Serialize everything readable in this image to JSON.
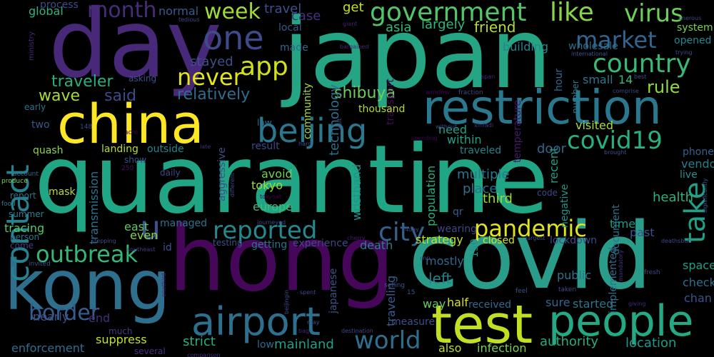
{
  "palette": {
    "yellow": "#fde725",
    "yellow_green": "#c8e020",
    "light_green": "#90d743",
    "green": "#5ec962",
    "teal_green": "#35b779",
    "teal": "#21918c",
    "blue_teal": "#2c728e",
    "blue": "#3b528b",
    "indigo": "#472d7b",
    "purple": "#440154"
  },
  "words": [
    {
      "text": "quarantine",
      "color": "#21a685"
    },
    {
      "text": "japan",
      "color": "#25a584"
    },
    {
      "text": "covid",
      "color": "#2a9d8a"
    },
    {
      "text": "hong",
      "color": "#46075a"
    },
    {
      "text": "day",
      "color": "#482878"
    },
    {
      "text": "kong",
      "color": "#2e6f8e"
    },
    {
      "text": "china",
      "color": "#fde725"
    },
    {
      "text": "restriction",
      "color": "#2a788e"
    },
    {
      "text": "test",
      "color": "#c2df23"
    },
    {
      "text": "people",
      "color": "#23a983"
    },
    {
      "text": "airport",
      "color": "#2d708e"
    },
    {
      "text": "government",
      "color": "#52c569"
    },
    {
      "text": "like",
      "color": "#86d549"
    },
    {
      "text": "virus",
      "color": "#6ece58"
    },
    {
      "text": "contact",
      "color": "#26828e"
    },
    {
      "text": "beijing",
      "color": "#2a778e"
    },
    {
      "text": "one",
      "color": "#3e4a89"
    },
    {
      "text": "week",
      "color": "#a0da39"
    },
    {
      "text": "month",
      "color": "#472c7a"
    },
    {
      "text": "market",
      "color": "#32658e"
    },
    {
      "text": "country",
      "color": "#38b977"
    },
    {
      "text": "app",
      "color": "#d0e11c"
    },
    {
      "text": "never",
      "color": "#e5e419"
    },
    {
      "text": "covid19",
      "color": "#2ab07f"
    },
    {
      "text": "take",
      "color": "#1fa088"
    },
    {
      "text": "reported",
      "color": "#23898e"
    },
    {
      "text": "outbreak",
      "color": "#35b779"
    },
    {
      "text": "pandemic",
      "color": "#e2e418"
    },
    {
      "text": "city",
      "color": "#33628d"
    },
    {
      "text": "border",
      "color": "#365d8d"
    },
    {
      "text": "world",
      "color": "#2d708e"
    },
    {
      "text": "u",
      "color": "#3b528b"
    },
    {
      "text": "traveler",
      "color": "#29af7f"
    },
    {
      "text": "relatively",
      "color": "#2f6c8e"
    },
    {
      "text": "shibuya",
      "color": "#6ccd5a"
    },
    {
      "text": "rule",
      "color": "#93d741"
    },
    {
      "text": "said",
      "color": "#3e4a89"
    },
    {
      "text": "wave",
      "color": "#a8db34"
    },
    {
      "text": "friend",
      "color": "#b5de2b"
    },
    {
      "text": "largely",
      "color": "#32b67a"
    },
    {
      "text": "get",
      "color": "#c5e021"
    },
    {
      "text": "asia",
      "color": "#35b779"
    },
    {
      "text": "case",
      "color": "#46307e"
    },
    {
      "text": "travel",
      "color": "#3b518b"
    },
    {
      "text": "normal",
      "color": "#375b8d"
    },
    {
      "text": "global",
      "color": "#2db27d"
    },
    {
      "text": "process",
      "color": "#3e4c8a"
    },
    {
      "text": "local",
      "color": "#39568c"
    },
    {
      "text": "made",
      "color": "#31668e"
    },
    {
      "text": "stayed",
      "color": "#3d4e8a"
    },
    {
      "text": "technology",
      "color": "#2d708e"
    },
    {
      "text": "community",
      "color": "#a5db36"
    },
    {
      "text": "transport",
      "color": "#46085c"
    },
    {
      "text": "building",
      "color": "#24868e"
    },
    {
      "text": "wholesale",
      "color": "#2e6e8e"
    },
    {
      "text": "system",
      "color": "#7ad151"
    },
    {
      "text": "opened",
      "color": "#23898e"
    },
    {
      "text": "small",
      "color": "#2a778e"
    },
    {
      "text": "14",
      "color": "#3aba76"
    },
    {
      "text": "hour",
      "color": "#31688e"
    },
    {
      "text": "temperature",
      "color": "#48186a"
    },
    {
      "text": "number",
      "color": "#277f8e"
    },
    {
      "text": "thousand",
      "color": "#b2dd2d"
    },
    {
      "text": "within",
      "color": "#1fa188"
    },
    {
      "text": "need",
      "color": "#1fa287"
    },
    {
      "text": "door",
      "color": "#32658e"
    },
    {
      "text": "visited",
      "color": "#a5db36"
    },
    {
      "text": "phone",
      "color": "#34618d"
    },
    {
      "text": "vendor",
      "color": "#287d8e"
    },
    {
      "text": "live",
      "color": "#21918c"
    },
    {
      "text": "health",
      "color": "#2db27d"
    },
    {
      "text": "recent",
      "color": "#1f9e89"
    },
    {
      "text": "multiple",
      "color": "#2a778e"
    },
    {
      "text": "place",
      "color": "#2d708e"
    },
    {
      "text": "third",
      "color": "#9bd93c"
    },
    {
      "text": "avoid",
      "color": "#74d055"
    },
    {
      "text": "tokyo",
      "color": "#a2da37"
    },
    {
      "text": "europe",
      "color": "#46b87a"
    },
    {
      "text": "result",
      "color": "#3f4889"
    },
    {
      "text": "outside",
      "color": "#24878e"
    },
    {
      "text": "traveled",
      "color": "#25848e"
    },
    {
      "text": "landing",
      "color": "#b5de2b"
    },
    {
      "text": "quash",
      "color": "#8bd646"
    },
    {
      "text": "two",
      "color": "#39568c"
    },
    {
      "text": "early",
      "color": "#2c738e"
    },
    {
      "text": "transmission",
      "color": "#2c738e"
    },
    {
      "text": "aggressive",
      "color": "#3c4f8a"
    },
    {
      "text": "wristband",
      "color": "#20928c"
    },
    {
      "text": "population",
      "color": "#2ab07f"
    },
    {
      "text": "east",
      "color": "#5cc863"
    },
    {
      "text": "even",
      "color": "#84d44b"
    },
    {
      "text": "managed",
      "color": "#2c728e"
    },
    {
      "text": "tracing",
      "color": "#54c568"
    },
    {
      "text": "mask",
      "color": "#bade28"
    },
    {
      "text": "report",
      "color": "#2c738e"
    },
    {
      "text": "summer",
      "color": "#27808e"
    },
    {
      "text": "person",
      "color": "#2c738e"
    },
    {
      "text": "come",
      "color": "#424086"
    },
    {
      "text": "wearing",
      "color": "#404688"
    },
    {
      "text": "qr",
      "color": "#365c8d"
    },
    {
      "text": "strategy",
      "color": "#c0df25"
    },
    {
      "text": "closed",
      "color": "#d2e21b"
    },
    {
      "text": "lockdown",
      "color": "#3e4989"
    },
    {
      "text": "time",
      "color": "#1f9a8a"
    },
    {
      "text": "past",
      "color": "#3b528b"
    },
    {
      "text": "document",
      "color": "#2c728e"
    },
    {
      "text": "implemented",
      "color": "#2d708e"
    },
    {
      "text": "negative",
      "color": "#1f958b"
    },
    {
      "text": "code",
      "color": "#3f4889"
    },
    {
      "text": "testing",
      "color": "#3b518b"
    },
    {
      "text": "getting",
      "color": "#2c738e"
    },
    {
      "text": "experience",
      "color": "#3f4788"
    },
    {
      "text": "death",
      "color": "#27808e"
    },
    {
      "text": "150",
      "color": "#21908d"
    },
    {
      "text": "mostly",
      "color": "#31688e"
    },
    {
      "text": "left",
      "color": "#26828e"
    },
    {
      "text": "public",
      "color": "#2c728e"
    },
    {
      "text": "space",
      "color": "#1f9e89"
    },
    {
      "text": "check",
      "color": "#2e6e8e"
    },
    {
      "text": "chan",
      "color": "#3b528b"
    },
    {
      "text": "half",
      "color": "#d8e219"
    },
    {
      "text": "received",
      "color": "#2f6b8e"
    },
    {
      "text": "sure",
      "color": "#32658e"
    },
    {
      "text": "started",
      "color": "#2a768e"
    },
    {
      "text": "way",
      "color": "#63cb5f"
    },
    {
      "text": "measure",
      "color": "#3d4d8a"
    },
    {
      "text": "japanese",
      "color": "#3b528b"
    },
    {
      "text": "traveling",
      "color": "#365d8d"
    },
    {
      "text": "end",
      "color": "#472e7c"
    },
    {
      "text": "nearly",
      "color": "#3b528b"
    },
    {
      "text": "much",
      "color": "#443983"
    },
    {
      "text": "suppress",
      "color": "#c6e021"
    },
    {
      "text": "strict",
      "color": "#29af7f"
    },
    {
      "text": "enforcement",
      "color": "#2e6e8e"
    },
    {
      "text": "several",
      "color": "#46307e"
    },
    {
      "text": "low",
      "color": "#31688e"
    },
    {
      "text": "mainland",
      "color": "#1fa088"
    },
    {
      "text": "also",
      "color": "#b8de29"
    },
    {
      "text": "infection",
      "color": "#7ad151"
    },
    {
      "text": "authority",
      "color": "#26ad81"
    },
    {
      "text": "location",
      "color": "#1f9a8a"
    },
    {
      "text": "daily",
      "color": "#404688"
    },
    {
      "text": "show",
      "color": "#3c508b"
    },
    {
      "text": "250",
      "color": "#481467"
    },
    {
      "text": "148",
      "color": "#3e4a89"
    },
    {
      "text": "acre",
      "color": "#440154"
    },
    {
      "text": "account",
      "color": "#2f6b8e"
    },
    {
      "text": "produce",
      "color": "#7ad151"
    },
    {
      "text": "food",
      "color": "#2a788e"
    },
    {
      "text": "ministry",
      "color": "#472a7a"
    },
    {
      "text": "tedious",
      "color": "#3e4a89"
    },
    {
      "text": "giant",
      "color": "#482173"
    },
    {
      "text": "bargained",
      "color": "#482878"
    },
    {
      "text": "asking",
      "color": "#3b528b"
    },
    {
      "text": "window",
      "color": "#440154"
    },
    {
      "text": "fraction",
      "color": "#3e4989"
    },
    {
      "text": "span",
      "color": "#482475"
    },
    {
      "text": "comprise",
      "color": "#3f4889"
    },
    {
      "text": "international",
      "color": "#3b528b"
    },
    {
      "text": "onerous",
      "color": "#3e4989"
    },
    {
      "text": "trying",
      "color": "#3e4a89"
    },
    {
      "text": "best",
      "color": "#3b528b"
    },
    {
      "text": "without",
      "color": "#3e4989"
    },
    {
      "text": "xinfadi",
      "color": "#46337f"
    },
    {
      "text": "hard",
      "color": "#3b528b"
    },
    {
      "text": "late",
      "color": "#472d7b"
    },
    {
      "text": "law",
      "color": "#2d708e"
    },
    {
      "text": "visit",
      "color": "#3b528b"
    },
    {
      "text": "spending",
      "color": "#440154"
    },
    {
      "text": "brought",
      "color": "#3b528b"
    },
    {
      "text": "deathsbut",
      "color": "#3e4989"
    },
    {
      "text": "mandatory",
      "color": "#46307e"
    },
    {
      "text": "significantly",
      "color": "#3b528b"
    },
    {
      "text": "tokyoat",
      "color": "#440154"
    },
    {
      "text": "journeyed",
      "color": "#3e4989"
    },
    {
      "text": "cherry",
      "color": "#481a6c"
    },
    {
      "text": "14day",
      "color": "#3e4989"
    },
    {
      "text": "largest",
      "color": "#3b528b"
    },
    {
      "text": "stepping",
      "color": "#3e4989"
    },
    {
      "text": "southeast",
      "color": "#443983"
    },
    {
      "text": "id",
      "color": "#3b528b"
    },
    {
      "text": "onethird",
      "color": "#482173"
    },
    {
      "text": "beijingin",
      "color": "#3e4989"
    },
    {
      "text": "invited",
      "color": "#3b528b"
    },
    {
      "text": "different",
      "color": "#3e4989"
    },
    {
      "text": "cnn",
      "color": "#3e4989"
    },
    {
      "text": "selling",
      "color": "#3b528b"
    },
    {
      "text": "spent",
      "color": "#3e4989"
    },
    {
      "text": "15",
      "color": "#3b528b"
    },
    {
      "text": "fresh",
      "color": "#3e4989"
    },
    {
      "text": "giving",
      "color": "#482878"
    },
    {
      "text": "feel",
      "color": "#3b528b"
    },
    {
      "text": "taken",
      "color": "#3e4989"
    },
    {
      "text": "may",
      "color": "#3b528b"
    },
    {
      "text": "bag",
      "color": "#482475"
    },
    {
      "text": "destination",
      "color": "#3e4989"
    },
    {
      "text": "comparison",
      "color": "#46307e"
    }
  ]
}
